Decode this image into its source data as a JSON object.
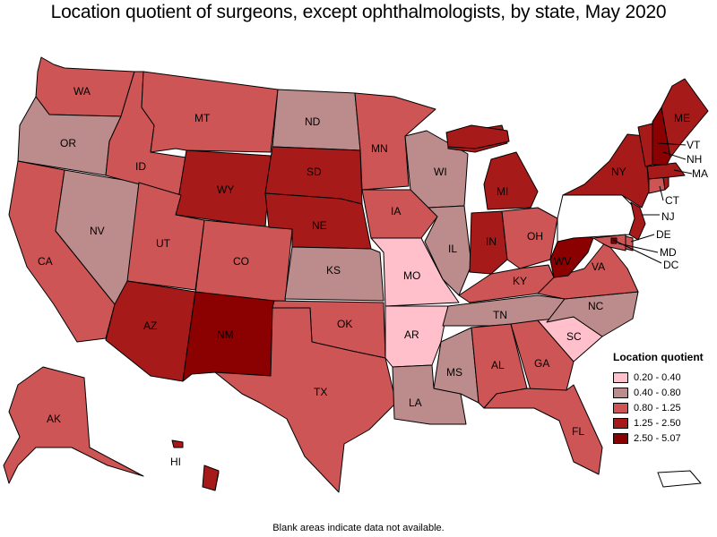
{
  "title": "Location quotient of surgeons, except ophthalmologists, by state, May 2020",
  "footnote": "Blank areas indicate data not available.",
  "legend": {
    "title": "Location quotient",
    "items": [
      {
        "label": "0.20 - 0.40",
        "color": "#FFC0CB"
      },
      {
        "label": "0.40 - 0.80",
        "color": "#BC8C8C"
      },
      {
        "label": "0.80 - 1.25",
        "color": "#CD5555"
      },
      {
        "label": "1.25 - 2.50",
        "color": "#A61A1A"
      },
      {
        "label": "2.50 - 5.07",
        "color": "#8B0000"
      }
    ]
  },
  "states": {
    "WA": "0.80 - 1.25",
    "OR": "0.40 - 0.80",
    "CA": "0.80 - 1.25",
    "NV": "0.40 - 0.80",
    "ID": "0.80 - 1.25",
    "MT": "0.80 - 1.25",
    "WY": "1.25 - 2.50",
    "UT": "0.80 - 1.25",
    "AZ": "1.25 - 2.50",
    "CO": "0.80 - 1.25",
    "NM": "2.50 - 5.07",
    "ND": "0.40 - 0.80",
    "SD": "1.25 - 2.50",
    "NE": "1.25 - 2.50",
    "KS": "0.40 - 0.80",
    "OK": "0.80 - 1.25",
    "TX": "0.80 - 1.25",
    "MN": "0.80 - 1.25",
    "IA": "0.80 - 1.25",
    "MO": "0.20 - 0.40",
    "AR": "0.20 - 0.40",
    "LA": "0.40 - 0.80",
    "WI": "0.40 - 0.80",
    "IL": "0.40 - 0.80",
    "MI": "1.25 - 2.50",
    "IN": "1.25 - 2.50",
    "OH": "0.80 - 1.25",
    "KY": "0.80 - 1.25",
    "TN": "0.40 - 0.80",
    "MS": "0.40 - 0.80",
    "AL": "0.80 - 1.25",
    "GA": "0.80 - 1.25",
    "FL": "0.80 - 1.25",
    "SC": "0.20 - 0.40",
    "NC": "0.40 - 0.80",
    "VA": "0.80 - 1.25",
    "WV": "2.50 - 5.07",
    "PA": "",
    "NY": "1.25 - 2.50",
    "NJ": "1.25 - 2.50",
    "DE": "0.80 - 1.25",
    "MD": "0.80 - 1.25",
    "DC": "2.50 - 5.07",
    "CT": "0.80 - 1.25",
    "VT": "1.25 - 2.50",
    "NH": "2.50 - 5.07",
    "MA": "1.25 - 2.50",
    "ME": "1.25 - 2.50",
    "RI": "1.25 - 2.50",
    "AK": "0.80 - 1.25",
    "HI": "1.25 - 2.50",
    "PR": ""
  }
}
